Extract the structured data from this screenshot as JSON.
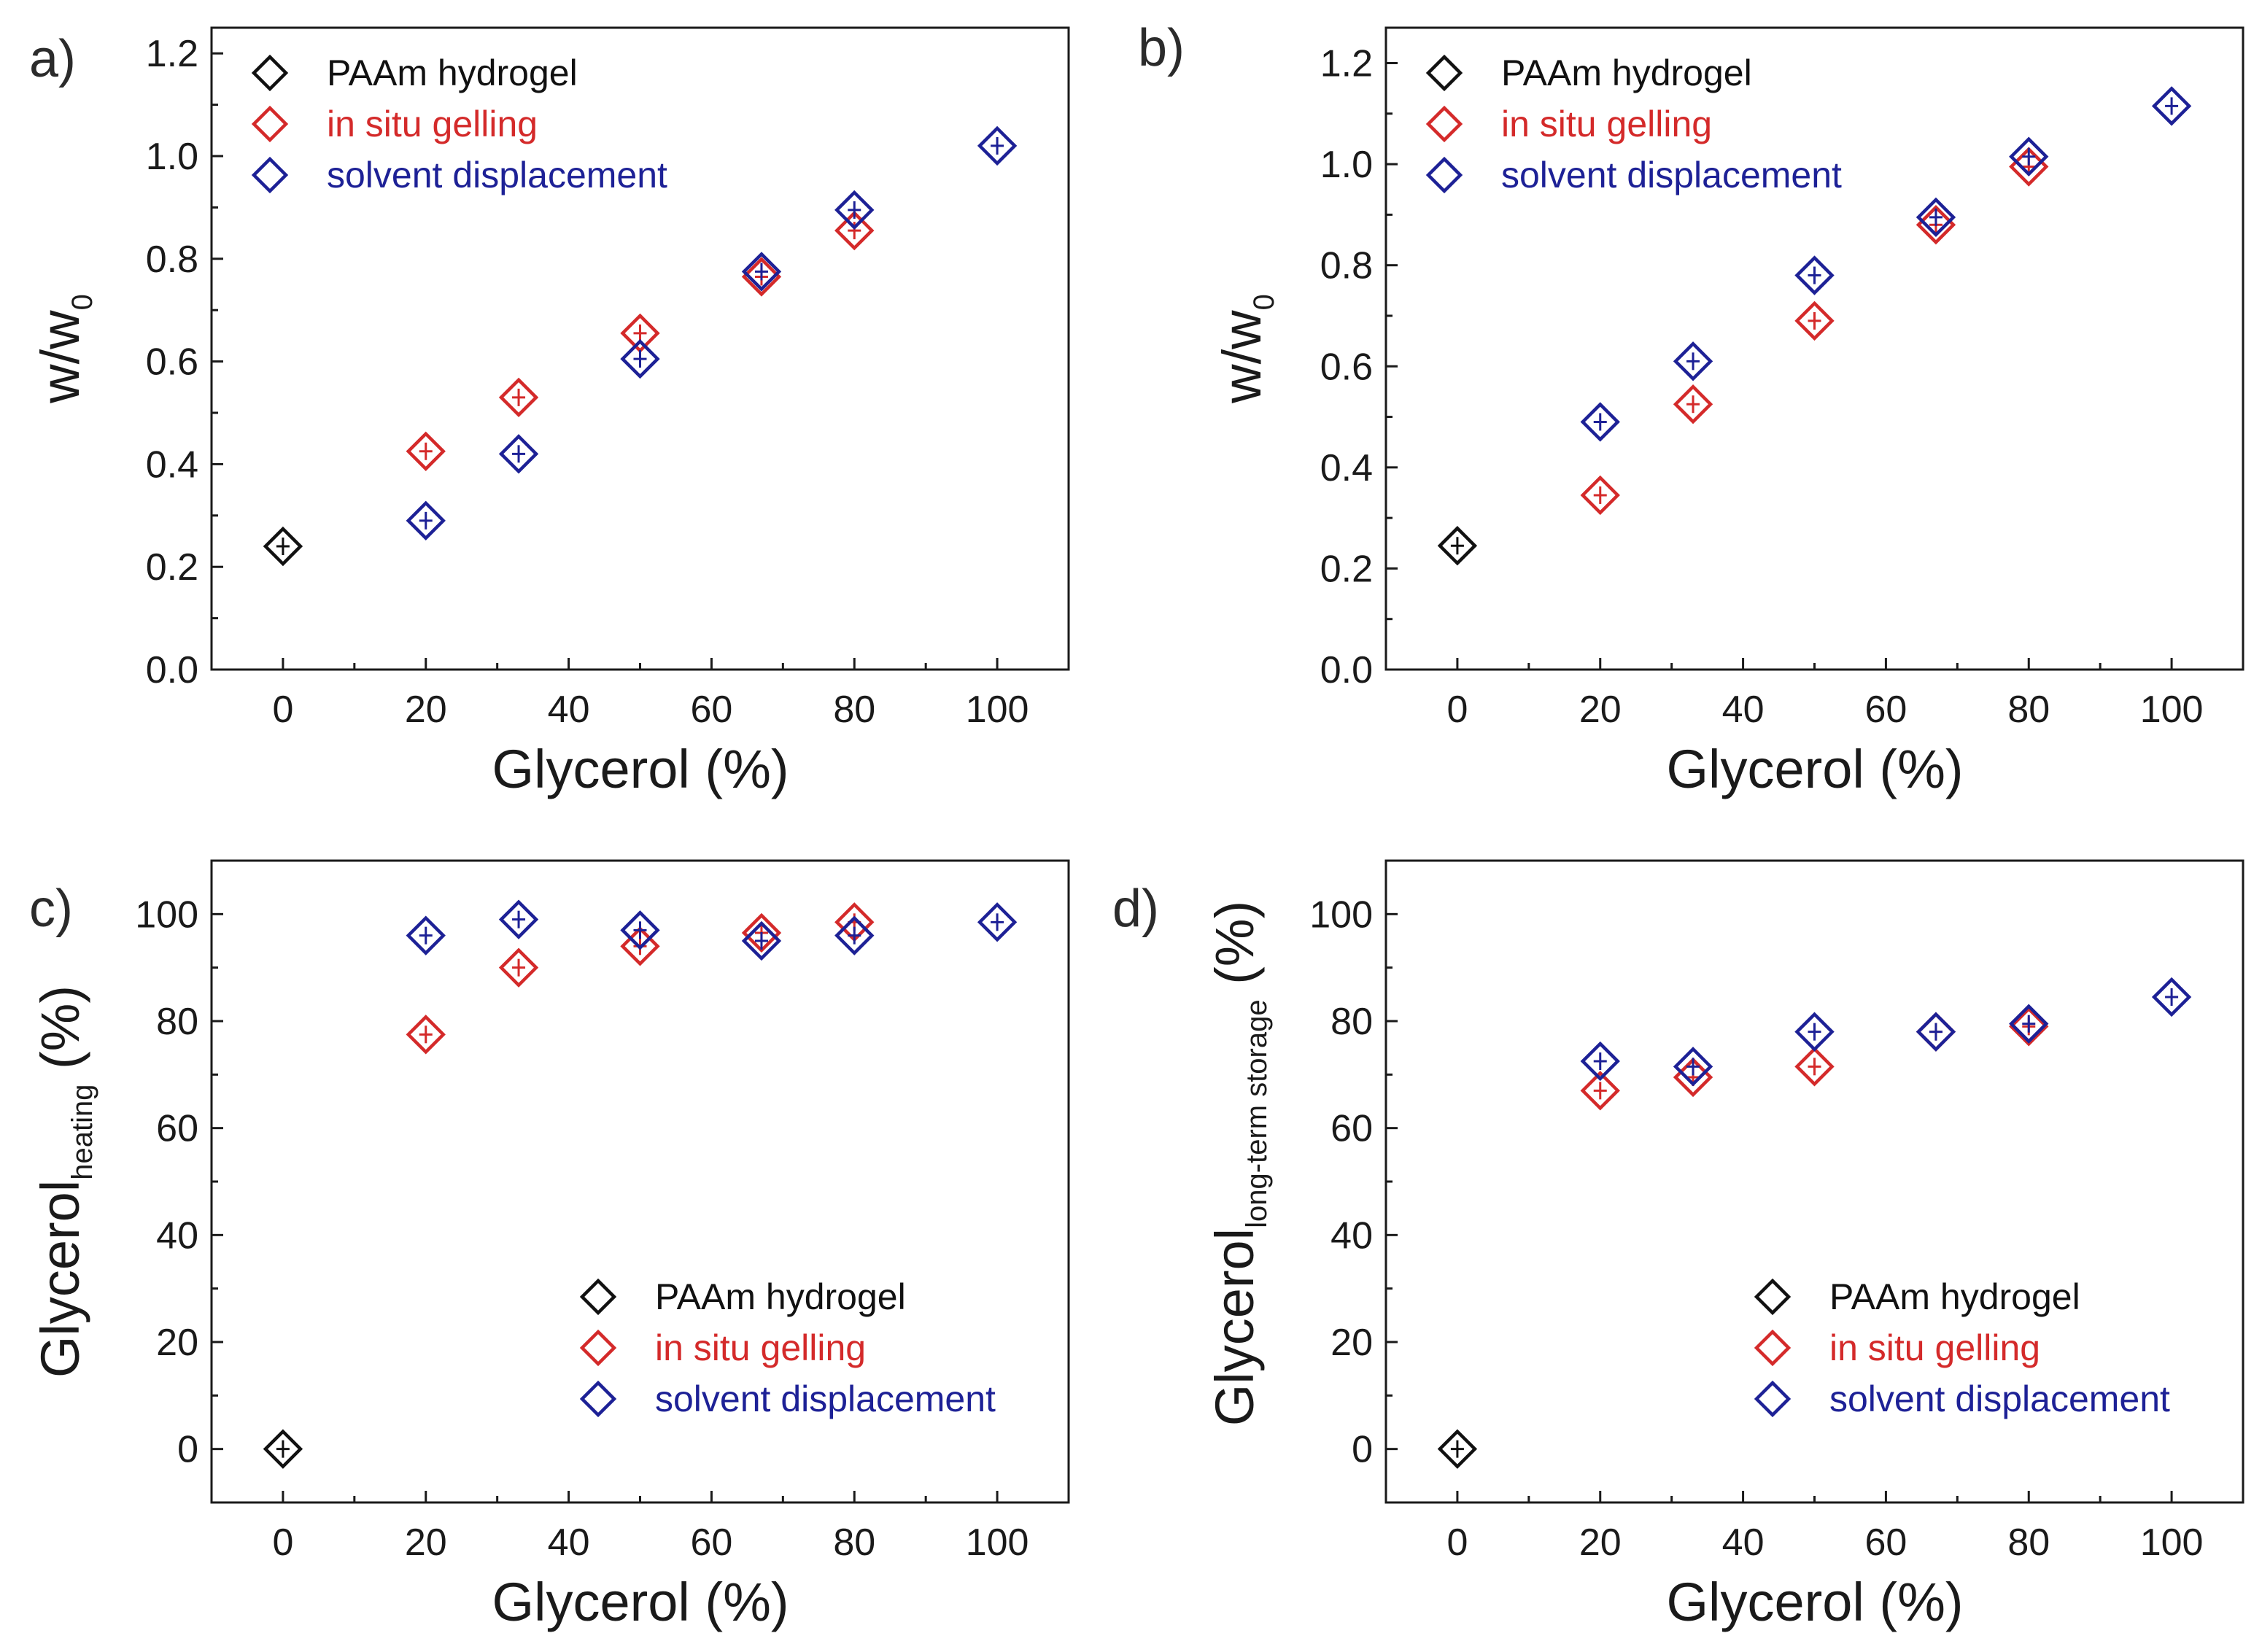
{
  "colors": {
    "paam": "#111111",
    "insitu": "#d42a2a",
    "solvent": "#1d2196"
  },
  "panels": [
    {
      "letter": "a)",
      "ylabel_main": "w/w",
      "ylabel_sub": "0"
    },
    {
      "letter": "b)",
      "ylabel_main": "w/w",
      "ylabel_sub": "0"
    },
    {
      "letter": "c)",
      "ylabel_main": "Glycerol",
      "ylabel_sub": "heating",
      "ylabel_suffix": " (%)"
    },
    {
      "letter": "d)",
      "ylabel_main": "Glycerol",
      "ylabel_sub": "long-term storage",
      "ylabel_suffix": " (%)"
    }
  ],
  "chart_data": [
    {
      "type": "scatter",
      "panel": "a",
      "xlabel": "Glycerol (%)",
      "ylabel": "w/w0",
      "xlim": [
        -10,
        110
      ],
      "ylim": [
        0.0,
        1.25
      ],
      "xticks": [
        0,
        20,
        40,
        60,
        80,
        100
      ],
      "yticks": [
        0.0,
        0.2,
        0.4,
        0.6,
        0.8,
        1.0,
        1.2
      ],
      "ytick_labels": [
        "0.0",
        "0.2",
        "0.4",
        "0.6",
        "0.8",
        "1.0",
        "1.2"
      ],
      "legend_position": "top-left",
      "series": [
        {
          "name": "PAAm hydrogel",
          "x": [
            0
          ],
          "y": [
            0.24
          ]
        },
        {
          "name": "in situ gelling",
          "x": [
            20,
            33,
            50,
            67,
            80
          ],
          "y": [
            0.425,
            0.53,
            0.655,
            0.765,
            0.855
          ]
        },
        {
          "name": "solvent displacement",
          "x": [
            20,
            33,
            50,
            67,
            80,
            100
          ],
          "y": [
            0.29,
            0.42,
            0.605,
            0.775,
            0.895,
            1.02
          ]
        }
      ]
    },
    {
      "type": "scatter",
      "panel": "b",
      "xlabel": "Glycerol (%)",
      "ylabel": "w/w0",
      "xlim": [
        -10,
        110
      ],
      "ylim": [
        0.0,
        1.27
      ],
      "xticks": [
        0,
        20,
        40,
        60,
        80,
        100
      ],
      "yticks": [
        0.0,
        0.2,
        0.4,
        0.6,
        0.8,
        1.0,
        1.2
      ],
      "ytick_labels": [
        "0.0",
        "0.2",
        "0.4",
        "0.6",
        "0.8",
        "1.0",
        "1.2"
      ],
      "legend_position": "top-left",
      "series": [
        {
          "name": "PAAm hydrogel",
          "x": [
            0
          ],
          "y": [
            0.245
          ]
        },
        {
          "name": "in situ gelling",
          "x": [
            20,
            33,
            50,
            67,
            80
          ],
          "y": [
            0.345,
            0.525,
            0.69,
            0.88,
            0.995
          ]
        },
        {
          "name": "solvent displacement",
          "x": [
            20,
            33,
            50,
            67,
            80,
            100
          ],
          "y": [
            0.49,
            0.61,
            0.78,
            0.895,
            1.015,
            1.115
          ]
        }
      ]
    },
    {
      "type": "scatter",
      "panel": "c",
      "xlabel": "Glycerol (%)",
      "ylabel": "Glycerol heating (%)",
      "xlim": [
        -10,
        110
      ],
      "ylim": [
        -10,
        110
      ],
      "xticks": [
        0,
        20,
        40,
        60,
        80,
        100
      ],
      "yticks": [
        0,
        20,
        40,
        60,
        80,
        100
      ],
      "ytick_labels": [
        "0",
        "20",
        "40",
        "60",
        "80",
        "100"
      ],
      "legend_position": "bottom-right",
      "series": [
        {
          "name": "PAAm hydrogel",
          "x": [
            0
          ],
          "y": [
            0
          ]
        },
        {
          "name": "in situ gelling",
          "x": [
            20,
            33,
            50,
            67,
            80
          ],
          "y": [
            77.5,
            90,
            94,
            96.5,
            98.5
          ]
        },
        {
          "name": "solvent displacement",
          "x": [
            20,
            33,
            50,
            67,
            80,
            100
          ],
          "y": [
            96,
            99,
            97,
            95,
            96,
            98.5
          ]
        }
      ]
    },
    {
      "type": "scatter",
      "panel": "d",
      "xlabel": "Glycerol (%)",
      "ylabel": "Glycerol long-term storage (%)",
      "xlim": [
        -10,
        110
      ],
      "ylim": [
        -10,
        110
      ],
      "xticks": [
        0,
        20,
        40,
        60,
        80,
        100
      ],
      "yticks": [
        0,
        20,
        40,
        60,
        80,
        100
      ],
      "ytick_labels": [
        "0",
        "20",
        "40",
        "60",
        "80",
        "100"
      ],
      "legend_position": "bottom-right",
      "series": [
        {
          "name": "PAAm hydrogel",
          "x": [
            0
          ],
          "y": [
            0
          ]
        },
        {
          "name": "in situ gelling",
          "x": [
            20,
            33,
            50,
            67,
            80
          ],
          "y": [
            67,
            69.5,
            71.5,
            78,
            79
          ]
        },
        {
          "name": "solvent displacement",
          "x": [
            20,
            33,
            50,
            67,
            80,
            100
          ],
          "y": [
            72.5,
            71.5,
            78,
            78,
            79.5,
            84.5
          ]
        }
      ]
    }
  ]
}
